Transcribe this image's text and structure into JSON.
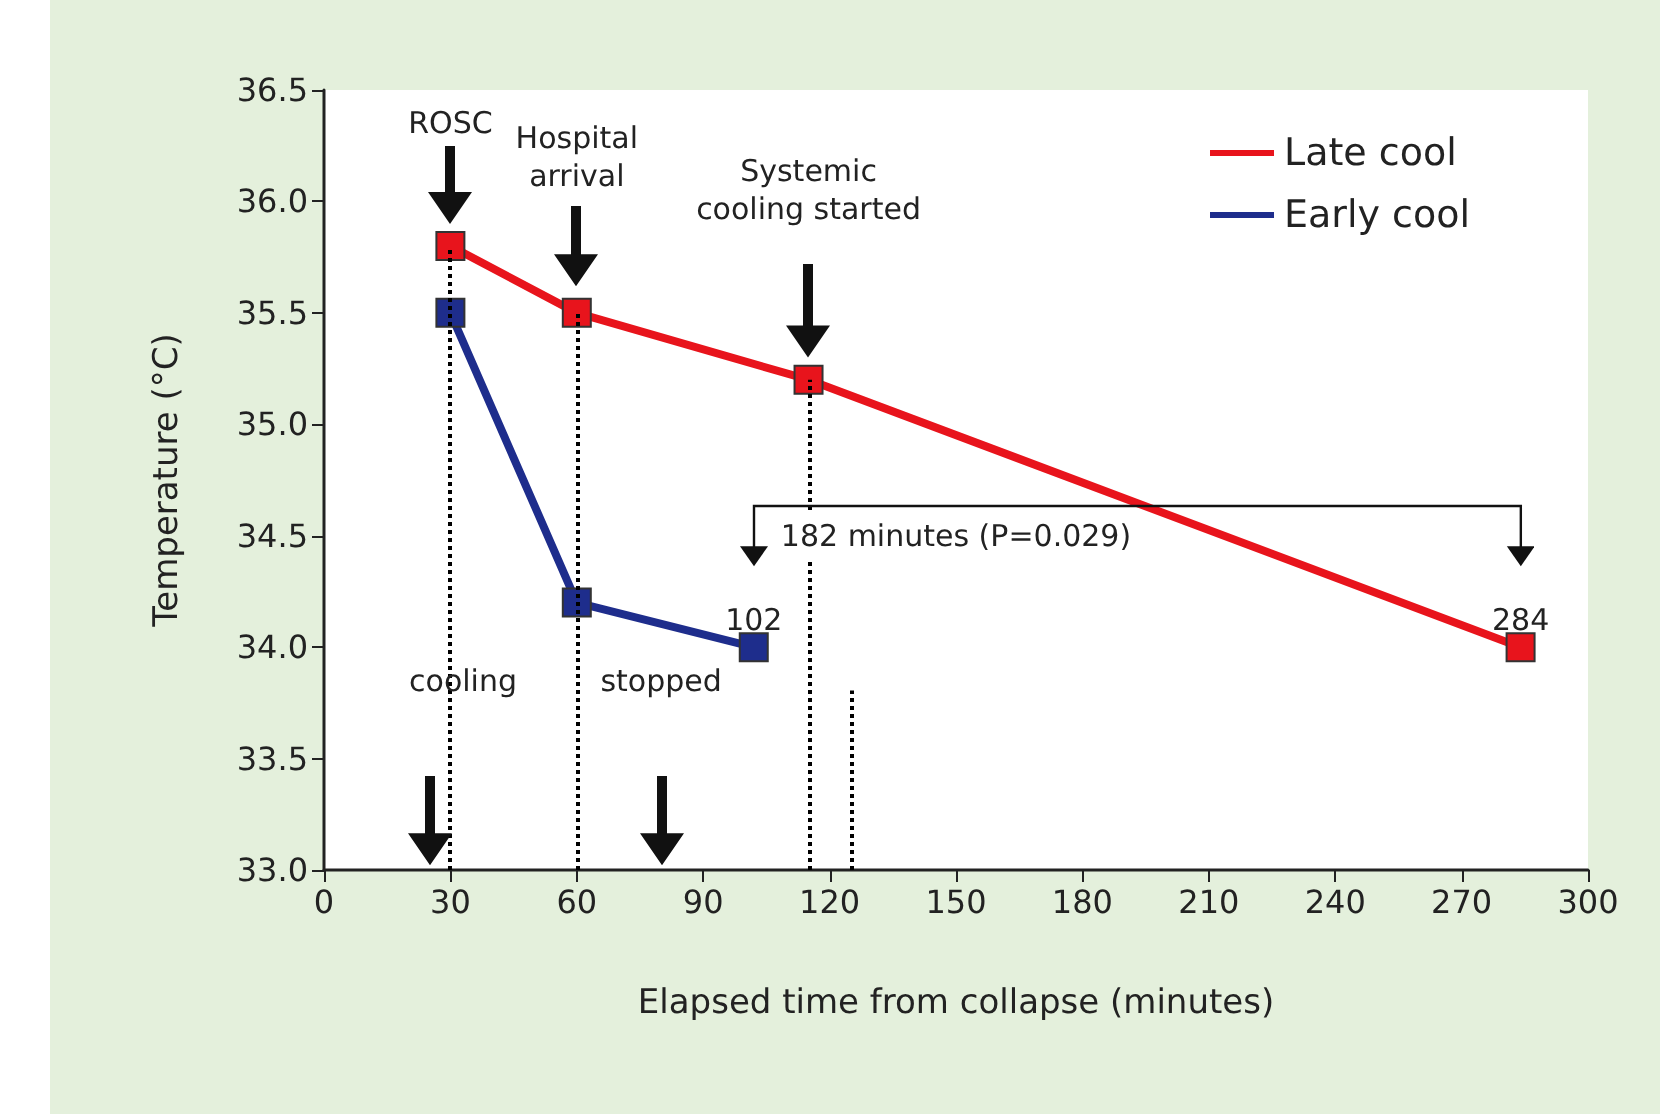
{
  "chart_data": {
    "type": "line",
    "xlabel": "Elapsed time from collapse (minutes)",
    "ylabel": "Temperature (°C)",
    "series": [
      {
        "name": "Late cool",
        "color": "#e8141c",
        "x": [
          30,
          60,
          115,
          284
        ],
        "values": [
          35.8,
          35.5,
          35.2,
          34.0
        ]
      },
      {
        "name": "Early cool",
        "color": "#1e2d8c",
        "x": [
          30,
          60,
          102
        ],
        "values": [
          35.5,
          34.2,
          34.0
        ]
      }
    ],
    "xlim": [
      0,
      300
    ],
    "xticks": [
      0,
      30,
      60,
      90,
      120,
      150,
      180,
      210,
      240,
      270,
      300
    ],
    "ylim": [
      33,
      36.5
    ],
    "yticks": [
      {
        "value": 33,
        "label": "33.0"
      },
      {
        "value": 33.5,
        "label": "33.5"
      },
      {
        "value": 34,
        "label": "34.0"
      },
      {
        "value": 34.5,
        "label": "34.5"
      },
      {
        "value": 35,
        "label": "35.0"
      },
      {
        "value": 35.5,
        "label": "35.5"
      },
      {
        "value": 36,
        "label": "36.0"
      },
      {
        "value": 36.5,
        "label": "36.5"
      }
    ],
    "ref_lines": [
      {
        "axis": "x",
        "value": 30,
        "line_style": "dotted",
        "color": "#000000"
      },
      {
        "axis": "x",
        "value": 60,
        "line_style": "dotted",
        "color": "#000000"
      },
      {
        "axis": "x",
        "value": 115,
        "line_style": "dotted",
        "color": "#000000"
      },
      {
        "axis": "x",
        "value": 125,
        "line_style": "dotted",
        "color": "#000000"
      }
    ],
    "annotations": [
      "ROSC",
      "Hospital\narrival",
      "Systemic\ncooling started",
      "cooling",
      "stopped",
      "102",
      "284",
      "182 minutes (P=0.029)"
    ],
    "legend": "top right",
    "marker": "square",
    "line_style": "solid",
    "grid": false
  }
}
